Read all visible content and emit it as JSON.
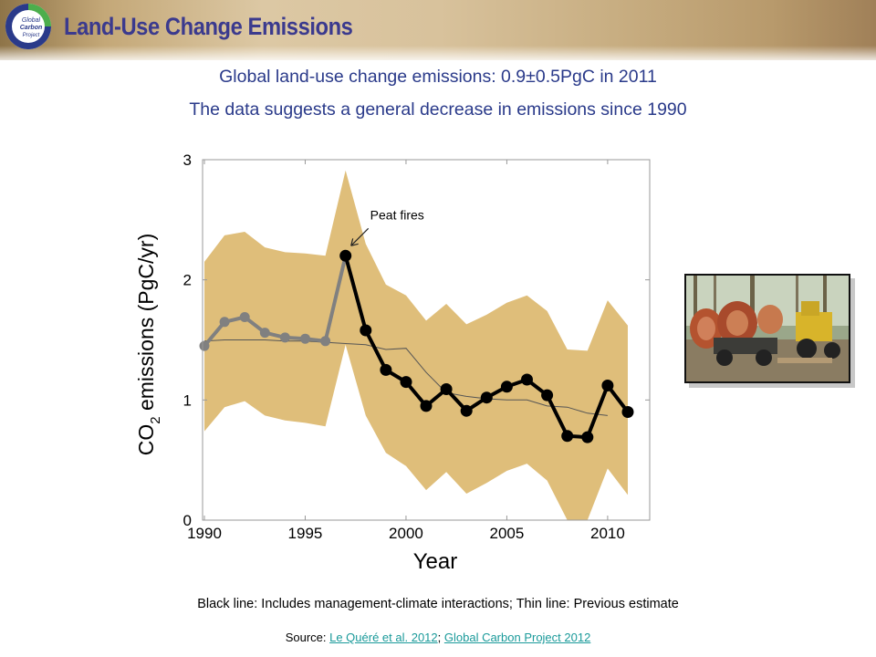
{
  "slide": {
    "title": "Land-Use Change Emissions",
    "subtitle_1": "Global land-use change emissions: 0.9±0.5PgC in 2011",
    "subtitle_2": "The data suggests a general decrease in emissions since 1990",
    "footnote": "Black line: Includes management-climate interactions; Thin line: Previous estimate",
    "source_prefix": "Source: ",
    "source_link_1": "Le Quéré et al. 2012",
    "source_separator": "; ",
    "source_link_2": "Global Carbon Project 2012",
    "logo_lines": [
      "Global",
      "Carbon",
      "Project"
    ]
  },
  "colors": {
    "title": "#3b3a8e",
    "subtitle": "#2a3a8a",
    "uncertainty_band": "#dfbe7a",
    "black_series": "#000000",
    "grey_series": "#808080",
    "previous_estimate": "#555555",
    "link": "#1a9a9a"
  },
  "chart_data": {
    "type": "line",
    "xlabel": "Year",
    "ylabel": "CO2 emissions (PgC/yr)",
    "ylabel_main": "CO",
    "ylabel_sub": "2",
    "ylabel_rest": " emissions (PgC/yr)",
    "xlim": [
      1990,
      2012
    ],
    "ylim": [
      0,
      3
    ],
    "xticks": [
      1990,
      1995,
      2000,
      2005,
      2010
    ],
    "yticks": [
      0,
      1,
      2,
      3
    ],
    "grid": false,
    "annotation": {
      "text": "Peat fires",
      "x": 1997,
      "y": 2.2
    },
    "band": {
      "x": [
        1990,
        1991,
        1992,
        1993,
        1994,
        1995,
        1996,
        1997,
        1998,
        1999,
        2000,
        2001,
        2002,
        2003,
        2004,
        2005,
        2006,
        2007,
        2008,
        2009,
        2010,
        2011
      ],
      "upper": [
        2.15,
        2.37,
        2.4,
        2.27,
        2.23,
        2.22,
        2.2,
        2.91,
        2.3,
        1.96,
        1.87,
        1.66,
        1.8,
        1.63,
        1.71,
        1.81,
        1.87,
        1.74,
        1.42,
        1.41,
        1.83,
        1.62
      ],
      "lower": [
        0.74,
        0.94,
        0.99,
        0.87,
        0.83,
        0.81,
        0.78,
        1.46,
        0.87,
        0.56,
        0.45,
        0.25,
        0.4,
        0.22,
        0.31,
        0.41,
        0.47,
        0.33,
        0.0,
        0.0,
        0.43,
        0.21
      ]
    },
    "series": [
      {
        "style": "grey",
        "x": [
          1990,
          1991,
          1992,
          1993,
          1994,
          1995,
          1996,
          1997
        ],
        "values": [
          1.45,
          1.65,
          1.69,
          1.56,
          1.52,
          1.51,
          1.49,
          2.2
        ]
      },
      {
        "style": "black",
        "x": [
          1997,
          1998,
          1999,
          2000,
          2001,
          2002,
          2003,
          2004,
          2005,
          2006,
          2007,
          2008,
          2009,
          2010,
          2011
        ],
        "values": [
          2.2,
          1.58,
          1.25,
          1.15,
          0.95,
          1.09,
          0.91,
          1.02,
          1.11,
          1.17,
          1.04,
          0.7,
          0.69,
          1.12,
          0.9
        ]
      },
      {
        "style": "thin",
        "x": [
          1990,
          1991,
          1992,
          1993,
          1994,
          1995,
          1996,
          1997,
          1998,
          1999,
          2000,
          2001,
          2002,
          2003,
          2004,
          2005,
          2006,
          2007,
          2008,
          2009,
          2010
        ],
        "values": [
          1.49,
          1.5,
          1.5,
          1.5,
          1.49,
          1.49,
          1.48,
          1.47,
          1.46,
          1.42,
          1.43,
          1.23,
          1.06,
          1.03,
          1.01,
          1.0,
          1.0,
          0.95,
          0.94,
          0.89,
          0.87
        ]
      }
    ]
  }
}
